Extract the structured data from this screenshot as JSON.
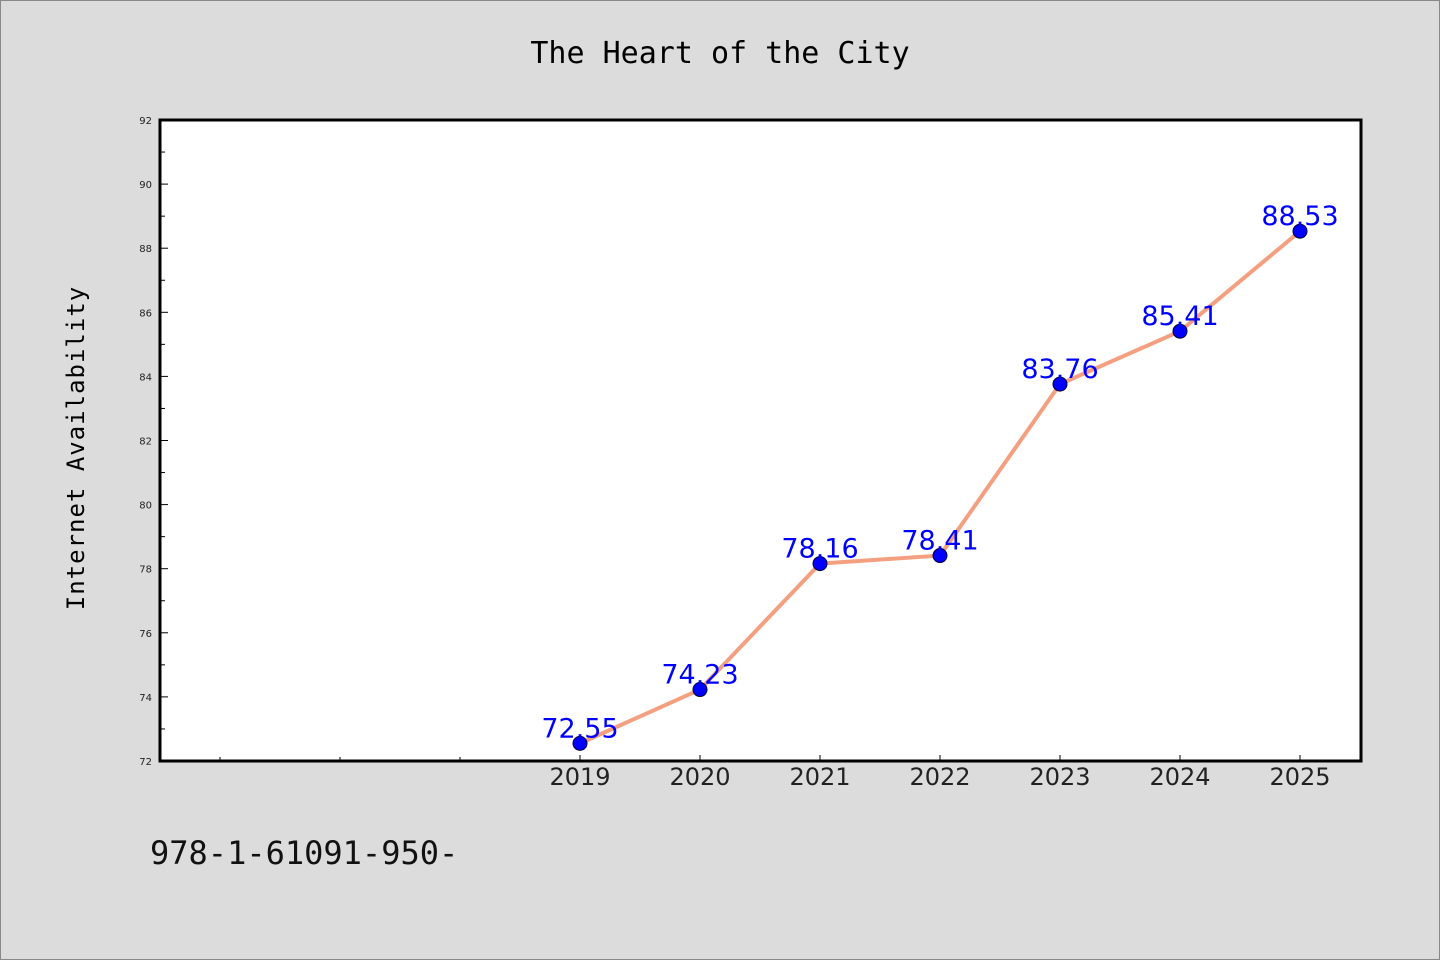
{
  "chart_data": {
    "type": "line",
    "title": "The Heart of the City",
    "xlabel": "",
    "ylabel": "Internet Availability",
    "categories": [
      "2019",
      "2020",
      "2021",
      "2022",
      "2023",
      "2024",
      "2025"
    ],
    "series": [
      {
        "values": [
          72.55,
          74.23,
          78.16,
          78.41,
          83.76,
          85.41,
          88.53
        ],
        "data_labels": [
          "72.55",
          "74.23",
          "78.16",
          "78.41",
          "83.76",
          "85.41",
          "88.53"
        ]
      }
    ],
    "ylim": [
      72,
      92
    ],
    "yticks": [
      72,
      74,
      76,
      78,
      80,
      82,
      84,
      86,
      88,
      90,
      92
    ],
    "grid": false,
    "legend": "none",
    "colors": {
      "line": "#f4a080",
      "marker": "#0000ff",
      "data_label": "#0000ff",
      "plot_background": "#ffffff",
      "figure_background": "#dcdcdc"
    }
  },
  "footer": {
    "text": "978-1-61091-950-"
  }
}
